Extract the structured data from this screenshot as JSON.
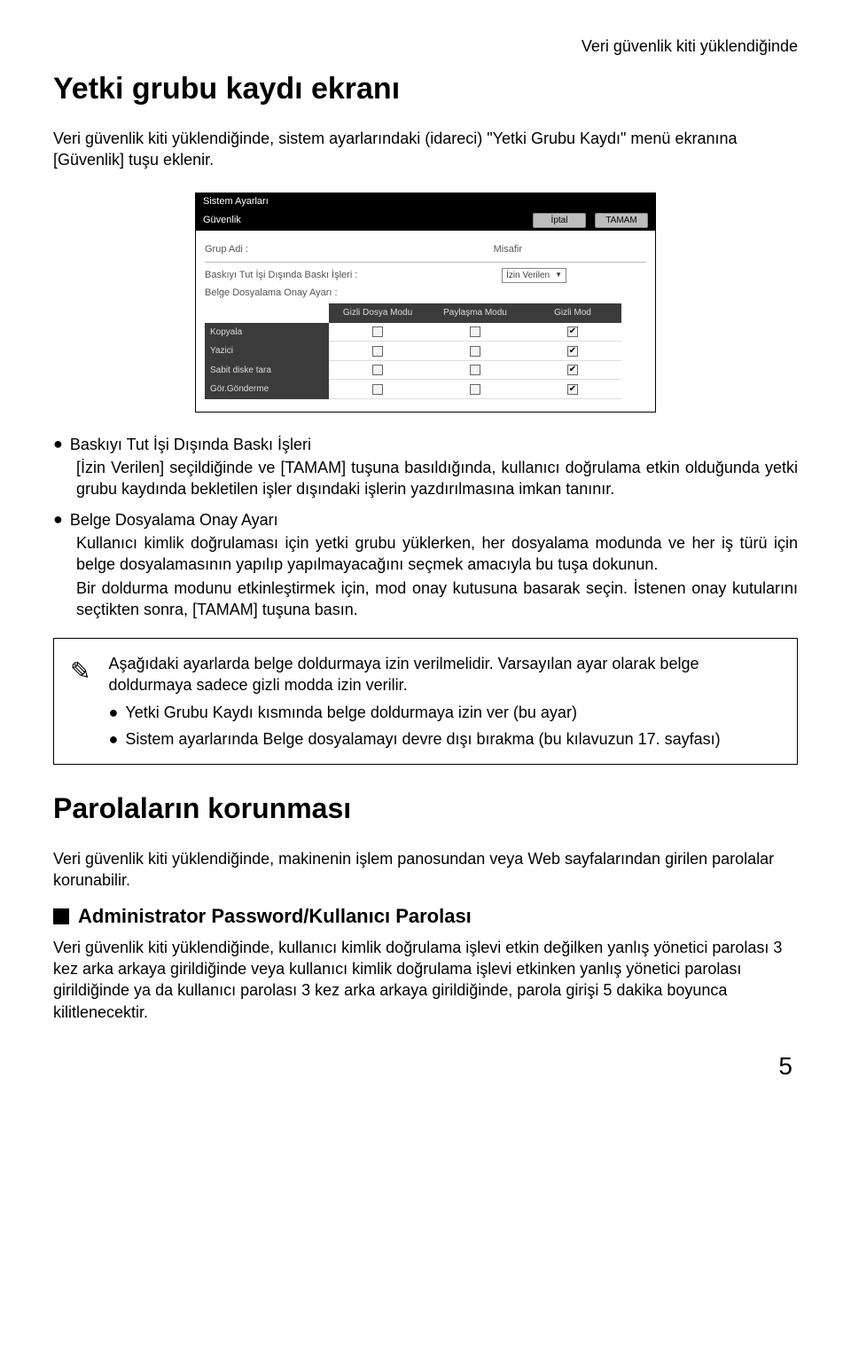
{
  "header_right": "Veri güvenlik kiti yüklendiğinde",
  "h1": "Yetki grubu kaydı ekranı",
  "intro": "Veri güvenlik kiti yüklendiğinde, sistem ayarlarındaki (idareci) \"Yetki Grubu Kaydı\" menü ekranına [Güvenlik] tuşu eklenir.",
  "dialog": {
    "title": "Sistem Ayarları",
    "security_label": "Güvenlik",
    "cancel": "İptal",
    "ok": "TAMAM",
    "group_label": "Grup Adi :",
    "group_value": "Misafir",
    "print_label": "Baskıyı Tut İşi Dışında Baskı İşleri :",
    "select_value": "İzin Verilen",
    "approval_label": "Belge Dosyalama Onay Ayarı :",
    "columns": [
      "",
      "Gizli Dosya Modu",
      "Paylaşma Modu",
      "Gizli Mod"
    ],
    "rows": [
      {
        "label": "Kopyala",
        "checks": [
          false,
          false,
          true
        ]
      },
      {
        "label": "Yazici",
        "checks": [
          false,
          false,
          true
        ]
      },
      {
        "label": "Sabit diske tara",
        "checks": [
          false,
          false,
          true
        ]
      },
      {
        "label": "Gör.Gönderme",
        "checks": [
          false,
          false,
          true
        ]
      }
    ]
  },
  "bullets": [
    {
      "title": "Baskıyı Tut İşi Dışında Baskı İşleri",
      "body": "[İzin Verilen] seçildiğinde ve [TAMAM] tuşuna basıldığında, kullanıcı doğrulama etkin olduğunda yetki grubu kaydında bekletilen işler dışındaki işlerin yazdırılmasına imkan tanınır."
    },
    {
      "title": "Belge Dosyalama Onay Ayarı",
      "body": "Kullanıcı kimlik doğrulaması için yetki grubu yüklerken, her dosyalama modunda ve her iş türü için belge dosyalamasının yapılıp yapılmayacağını seçmek amacıyla bu tuşa dokunun.",
      "body2": "Bir doldurma modunu etkinleştirmek için, mod onay kutusuna basarak seçin. İstenen onay kutularını seçtikten sonra, [TAMAM] tuşuna basın."
    }
  ],
  "note": {
    "p1": "Aşağıdaki ayarlarda belge doldurmaya izin verilmelidir. Varsayılan ayar olarak belge doldurmaya sadece gizli modda izin verilir.",
    "b1": "Yetki Grubu Kaydı kısmında belge doldurmaya izin ver (bu ayar)",
    "b2": "Sistem ayarlarında Belge dosyalamayı devre dışı bırakma (bu kılavuzun 17. sayfası)"
  },
  "h2": "Parolaların korunması",
  "para2": "Veri güvenlik kiti yüklendiğinde, makinenin işlem panosundan veya Web sayfalarından girilen parolalar korunabilir.",
  "subhead": "Administrator Password/Kullanıcı Parolası",
  "para3": "Veri güvenlik kiti yüklendiğinde, kullanıcı kimlik doğrulama işlevi etkin değilken yanlış yönetici parolası 3 kez arka arkaya girildiğinde veya kullanıcı kimlik doğrulama işlevi etkinken yanlış yönetici parolası girildiğinde ya da kullanıcı parolası 3 kez arka arkaya girildiğinde, parola girişi 5 dakika boyunca kilitlenecektir.",
  "page_number": "5"
}
